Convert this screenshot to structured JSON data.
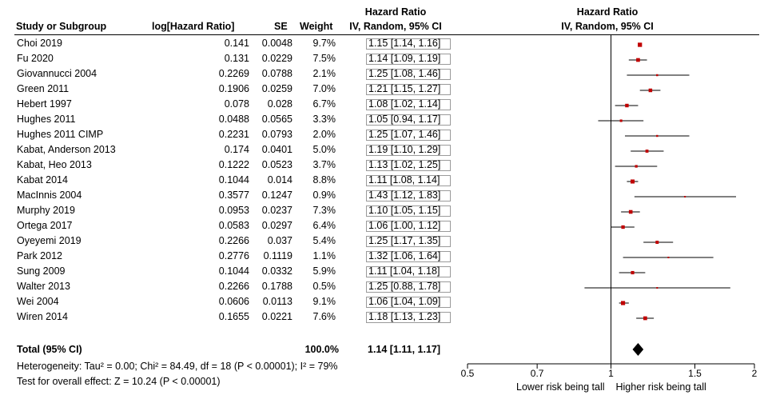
{
  "chart_data": {
    "type": "forest",
    "headers": {
      "study": "Study or Subgroup",
      "log_hr": "log[Hazard Ratio]",
      "se": "SE",
      "weight": "Weight",
      "hr_top": "Hazard Ratio",
      "hr_method": "IV, Random, 95% CI",
      "plot_top": "Hazard Ratio",
      "plot_method": "IV, Random, 95% CI"
    },
    "studies": [
      {
        "name": "Choi 2019",
        "log_hr": "0.141",
        "se": "0.0048",
        "weight": "9.7%",
        "ci_text": "1.15 [1.14, 1.16]",
        "hr": 1.15,
        "lo": 1.14,
        "hi": 1.16
      },
      {
        "name": "Fu 2020",
        "log_hr": "0.131",
        "se": "0.0229",
        "weight": "7.5%",
        "ci_text": "1.14 [1.09, 1.19]",
        "hr": 1.14,
        "lo": 1.09,
        "hi": 1.19
      },
      {
        "name": "Giovannucci 2004",
        "log_hr": "0.2269",
        "se": "0.0788",
        "weight": "2.1%",
        "ci_text": "1.25 [1.08, 1.46]",
        "hr": 1.25,
        "lo": 1.08,
        "hi": 1.46
      },
      {
        "name": "Green 2011",
        "log_hr": "0.1906",
        "se": "0.0259",
        "weight": "7.0%",
        "ci_text": "1.21 [1.15, 1.27]",
        "hr": 1.21,
        "lo": 1.15,
        "hi": 1.27
      },
      {
        "name": "Hebert 1997",
        "log_hr": "0.078",
        "se": "0.028",
        "weight": "6.7%",
        "ci_text": "1.08 [1.02, 1.14]",
        "hr": 1.08,
        "lo": 1.02,
        "hi": 1.14
      },
      {
        "name": "Hughes 2011",
        "log_hr": "0.0488",
        "se": "0.0565",
        "weight": "3.3%",
        "ci_text": "1.05 [0.94, 1.17]",
        "hr": 1.05,
        "lo": 0.94,
        "hi": 1.17
      },
      {
        "name": "Hughes 2011 CIMP",
        "log_hr": "0.2231",
        "se": "0.0793",
        "weight": "2.0%",
        "ci_text": "1.25 [1.07, 1.46]",
        "hr": 1.25,
        "lo": 1.07,
        "hi": 1.46
      },
      {
        "name": "Kabat, Anderson 2013",
        "log_hr": "0.174",
        "se": "0.0401",
        "weight": "5.0%",
        "ci_text": "1.19 [1.10, 1.29]",
        "hr": 1.19,
        "lo": 1.1,
        "hi": 1.29
      },
      {
        "name": "Kabat, Heo 2013",
        "log_hr": "0.1222",
        "se": "0.0523",
        "weight": "3.7%",
        "ci_text": "1.13 [1.02, 1.25]",
        "hr": 1.13,
        "lo": 1.02,
        "hi": 1.25
      },
      {
        "name": "Kabat 2014",
        "log_hr": "0.1044",
        "se": "0.014",
        "weight": "8.8%",
        "ci_text": "1.11 [1.08, 1.14]",
        "hr": 1.11,
        "lo": 1.08,
        "hi": 1.14
      },
      {
        "name": "MacInnis 2004",
        "log_hr": "0.3577",
        "se": "0.1247",
        "weight": "0.9%",
        "ci_text": "1.43 [1.12, 1.83]",
        "hr": 1.43,
        "lo": 1.12,
        "hi": 1.83
      },
      {
        "name": "Murphy 2019",
        "log_hr": "0.0953",
        "se": "0.0237",
        "weight": "7.3%",
        "ci_text": "1.10 [1.05, 1.15]",
        "hr": 1.1,
        "lo": 1.05,
        "hi": 1.15
      },
      {
        "name": "Ortega 2017",
        "log_hr": "0.0583",
        "se": "0.0297",
        "weight": "6.4%",
        "ci_text": "1.06 [1.00, 1.12]",
        "hr": 1.06,
        "lo": 1.0,
        "hi": 1.12
      },
      {
        "name": "Oyeyemi 2019",
        "log_hr": "0.2266",
        "se": "0.037",
        "weight": "5.4%",
        "ci_text": "1.25 [1.17, 1.35]",
        "hr": 1.25,
        "lo": 1.17,
        "hi": 1.35
      },
      {
        "name": "Park 2012",
        "log_hr": "0.2776",
        "se": "0.1119",
        "weight": "1.1%",
        "ci_text": "1.32 [1.06, 1.64]",
        "hr": 1.32,
        "lo": 1.06,
        "hi": 1.64
      },
      {
        "name": "Sung 2009",
        "log_hr": "0.1044",
        "se": "0.0332",
        "weight": "5.9%",
        "ci_text": "1.11 [1.04, 1.18]",
        "hr": 1.11,
        "lo": 1.04,
        "hi": 1.18
      },
      {
        "name": "Walter 2013",
        "log_hr": "0.2266",
        "se": "0.1788",
        "weight": "0.5%",
        "ci_text": "1.25 [0.88, 1.78]",
        "hr": 1.25,
        "lo": 0.88,
        "hi": 1.78
      },
      {
        "name": "Wei 2004",
        "log_hr": "0.0606",
        "se": "0.0113",
        "weight": "9.1%",
        "ci_text": "1.06 [1.04, 1.09]",
        "hr": 1.06,
        "lo": 1.04,
        "hi": 1.09
      },
      {
        "name": "Wiren 2014",
        "log_hr": "0.1655",
        "se": "0.0221",
        "weight": "7.6%",
        "ci_text": "1.18 [1.13, 1.23]",
        "hr": 1.18,
        "lo": 1.13,
        "hi": 1.23
      }
    ],
    "total": {
      "label": "Total (95% CI)",
      "weight": "100.0%",
      "ci_text": "1.14 [1.11, 1.17]",
      "hr": 1.14,
      "lo": 1.11,
      "hi": 1.17
    },
    "heterogeneity": "Heterogeneity: Tau² = 0.00; Chi² = 84.49, df = 18 (P < 0.00001); I² = 79%",
    "overall_effect": "Test for overall effect: Z = 10.24 (P < 0.00001)",
    "axis": {
      "scale": "log",
      "xlim": [
        0.5,
        2
      ],
      "ticks": [
        0.5,
        0.7,
        1,
        1.5,
        2
      ],
      "tick_labels": [
        "0.5",
        "0.7",
        "1",
        "1.5",
        "2"
      ],
      "null_value": 1,
      "label_left": "Lower risk being tall",
      "label_right": "Higher risk being tall"
    },
    "colors": {
      "marker": "#c00000",
      "line": "#000000",
      "box_border": "#9a9a9a"
    }
  }
}
